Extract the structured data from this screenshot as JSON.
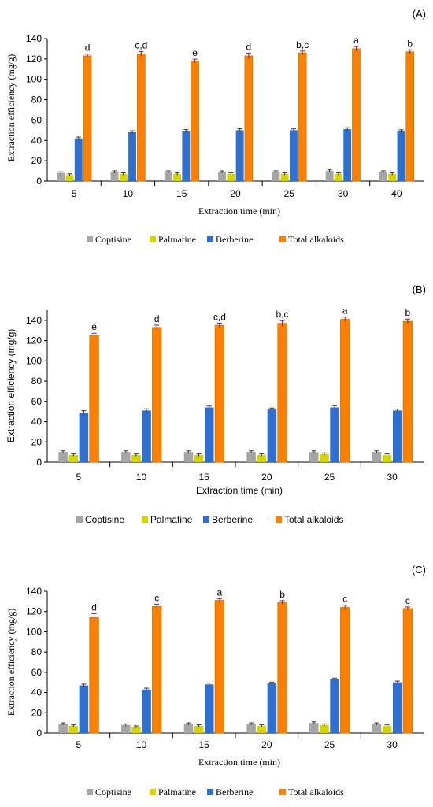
{
  "colors": {
    "Coptisine": "#a6a6a6",
    "Palmatine": "#d4d400",
    "Berberine": "#2f6fd0",
    "Total alkaloids": "#ff7f00",
    "total_edge": "#c08000",
    "error": "#8b1a4a"
  },
  "chart_data": [
    {
      "type": "bar",
      "panel_label": "(A)",
      "xlabel": "Extraction time (min)",
      "ylabel": "Extraction efficiency (mg/g)",
      "ylim": [
        0,
        140
      ],
      "yticks": [
        0,
        20,
        40,
        60,
        80,
        100,
        120,
        140
      ],
      "categories": [
        "5",
        "10",
        "15",
        "20",
        "25",
        "30",
        "40"
      ],
      "series": [
        {
          "name": "Coptisine",
          "values": [
            8,
            9,
            9,
            9,
            9,
            10,
            9
          ],
          "errors": [
            0.3,
            0.3,
            0.3,
            0.3,
            0.3,
            0.3,
            0.3
          ]
        },
        {
          "name": "Palmatine",
          "values": [
            6,
            7,
            7,
            7,
            7,
            7,
            7
          ],
          "errors": [
            0.3,
            0.3,
            0.3,
            0.3,
            0.3,
            0.3,
            0.3
          ]
        },
        {
          "name": "Berberine",
          "values": [
            42,
            48,
            49,
            50,
            50,
            51,
            49
          ],
          "errors": [
            0.5,
            0.6,
            0.8,
            0.6,
            0.5,
            0.6,
            0.6
          ]
        },
        {
          "name": "Total alkaloids",
          "values": [
            123,
            125,
            118,
            123,
            126,
            130,
            127
          ],
          "errors": [
            1,
            1.5,
            1,
            2,
            1,
            1.5,
            1.2
          ]
        }
      ],
      "significance": [
        "d",
        "c,d",
        "e",
        "d",
        "b,c",
        "a",
        "b"
      ],
      "legend": [
        "Coptisine",
        "Palmatine",
        "Berberine",
        "Total alkaloids"
      ]
    },
    {
      "type": "bar",
      "panel_label": "(B)",
      "xlabel": "Extraction time (min)",
      "ylabel": "Extraction efficiency (mg/g)",
      "ylim": [
        0,
        150
      ],
      "yticks": [
        0,
        20,
        40,
        60,
        80,
        100,
        120,
        140
      ],
      "categories": [
        "5",
        "10",
        "15",
        "20",
        "25",
        "30"
      ],
      "series": [
        {
          "name": "Coptisine",
          "values": [
            10,
            10,
            10,
            10,
            10,
            10
          ],
          "errors": [
            0.3,
            0.3,
            0.3,
            0.3,
            0.3,
            0.3
          ]
        },
        {
          "name": "Palmatine",
          "values": [
            7,
            7,
            7,
            7,
            8,
            7
          ],
          "errors": [
            0.3,
            0.3,
            0.3,
            0.3,
            0.3,
            0.3
          ]
        },
        {
          "name": "Berberine",
          "values": [
            49,
            51,
            54,
            52,
            54,
            51
          ],
          "errors": [
            1,
            0.8,
            0.6,
            0.6,
            1,
            0.6
          ]
        },
        {
          "name": "Total alkaloids",
          "values": [
            125,
            133,
            135,
            137,
            141,
            139
          ],
          "errors": [
            1.5,
            1.5,
            1.5,
            2,
            1.5,
            1.5
          ]
        }
      ],
      "significance": [
        "e",
        "d",
        "c,d",
        "b,c",
        "a",
        "b"
      ],
      "legend": [
        "Coptisine",
        "Palmatine",
        "Berberine",
        "Total alkaloids"
      ]
    },
    {
      "type": "bar",
      "panel_label": "(C)",
      "xlabel": "Extraction time (min)",
      "ylabel": "Extraction efficiency (mg/g)",
      "ylim": [
        0,
        140
      ],
      "yticks": [
        0,
        20,
        40,
        60,
        80,
        100,
        120,
        140
      ],
      "categories": [
        "5",
        "10",
        "15",
        "20",
        "25",
        "30"
      ],
      "series": [
        {
          "name": "Coptisine",
          "values": [
            9,
            8,
            9,
            9,
            10,
            9
          ],
          "errors": [
            0.3,
            0.3,
            0.3,
            0.3,
            0.3,
            0.3
          ]
        },
        {
          "name": "Palmatine",
          "values": [
            7,
            6,
            7,
            7,
            8,
            7
          ],
          "errors": [
            0.3,
            0.3,
            0.3,
            0.3,
            0.3,
            0.3
          ]
        },
        {
          "name": "Berberine",
          "values": [
            47,
            43,
            48,
            49,
            53,
            50
          ],
          "errors": [
            0.5,
            0.5,
            0.5,
            0.5,
            0.5,
            0.5
          ]
        },
        {
          "name": "Total alkaloids",
          "values": [
            114,
            125,
            131,
            129,
            124,
            123
          ],
          "errors": [
            3,
            1.5,
            1,
            1,
            1.5,
            0.8
          ]
        }
      ],
      "significance": [
        "d",
        "c",
        "a",
        "b",
        "c",
        "c"
      ],
      "legend": [
        "Coptisine",
        "Palmatine",
        "Berberine",
        "Total alkaloids"
      ]
    }
  ]
}
